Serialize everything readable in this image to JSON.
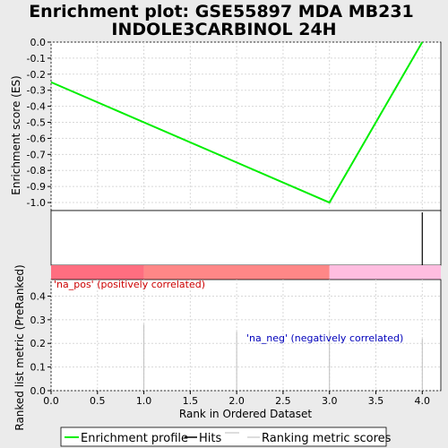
{
  "chart_data": {
    "type": "line",
    "title_line1": "Enrichment plot: GSE55897 MDA MB231",
    "title_line2": "INDOLE3CARBINOL 24H",
    "es_panel": {
      "ylabel": "Enrichment score (ES)",
      "ylim": [
        -1.05,
        0.0
      ],
      "yticks": [
        0.0,
        -0.1,
        -0.2,
        -0.3,
        -0.4,
        -0.5,
        -0.6,
        -0.7,
        -0.8,
        -0.9,
        -1.0
      ],
      "ytick_labels": [
        "0.0",
        "-0.1",
        "-0.2",
        "-0.3",
        "-0.4",
        "-0.5",
        "-0.6",
        "-0.7",
        "-0.8",
        "-0.9",
        "-1.0"
      ],
      "series": [
        {
          "name": "Enrichment profile",
          "color": "#00ee00",
          "x": [
            0,
            3,
            4
          ],
          "y": [
            -0.25,
            -1.0,
            0.0
          ]
        }
      ],
      "grid": true
    },
    "hits": {
      "x": [
        4
      ],
      "color": "#000000"
    },
    "rank_panel": {
      "xlabel": "Rank in Ordered Dataset",
      "ylabel": "Ranked list metric (PreRanked)",
      "ylim": [
        0,
        0.47
      ],
      "yticks": [
        0.0,
        0.1,
        0.2,
        0.3,
        0.4
      ],
      "ytick_labels": [
        "0.0",
        "0.1",
        "0.2",
        "0.3",
        "0.4"
      ],
      "xlim": [
        0,
        4.2
      ],
      "xticks": [
        0.0,
        0.5,
        1.0,
        1.5,
        2.0,
        2.5,
        3.0,
        3.5,
        4.0
      ],
      "xtick_labels": [
        "0.0",
        "0.5",
        "1.0",
        "1.5",
        "2.0",
        "2.5",
        "3.0",
        "3.5",
        "4.0"
      ],
      "bars": {
        "x": [
          1,
          2,
          3,
          4
        ],
        "values": [
          0.28,
          0.25,
          0.25,
          0.22
        ],
        "color": "#bfbfbf"
      },
      "grid": true,
      "pos_label": "'na_pos' (positively correlated)",
      "neg_label": "'na_neg' (negatively correlated)",
      "pos_color": "#cc0000",
      "neg_color": "#0000bb"
    },
    "heat_strip": [
      {
        "from": 0,
        "to": 1,
        "color": "#ff6e80"
      },
      {
        "from": 1,
        "to": 3,
        "color": "#ff8787"
      },
      {
        "from": 3,
        "to": 4.2,
        "color": "#ffbde0"
      }
    ],
    "legend": {
      "placement": "bottom",
      "items": [
        {
          "label": "Enrichment profile",
          "color": "#00ee00",
          "kind": "line"
        },
        {
          "label": "Hits",
          "color": "#000000",
          "kind": "line"
        },
        {
          "label": "",
          "color": "#bbbbbb",
          "kind": "line"
        },
        {
          "label": "Ranking metric scores",
          "color": "#bbbbbb",
          "kind": "line"
        }
      ]
    }
  }
}
